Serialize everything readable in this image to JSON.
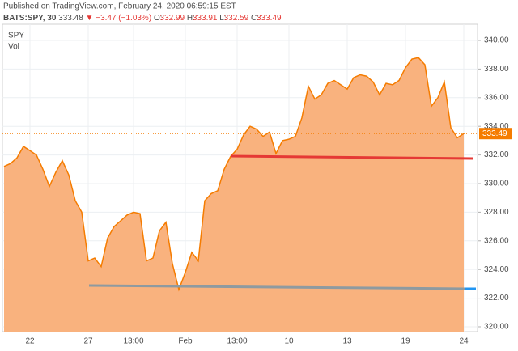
{
  "header": {
    "published": "Published on TradingView.com, February 24, 2020 06:59:15 EST",
    "symbol": "BATS:SPY, 30",
    "last": "333.48",
    "change": "▼ −3.47 (−1.03%)",
    "o_label": "O:",
    "o": "332.99",
    "h_label": "H:",
    "h": "333.91",
    "l_label": "L:",
    "l": "332.59",
    "c_label": "C:",
    "c": "333.49"
  },
  "chart_data": {
    "type": "area",
    "legend": [
      "SPY",
      "Vol"
    ],
    "categories": [
      null,
      null,
      null,
      null,
      "22",
      null,
      null,
      null,
      null,
      null,
      null,
      null,
      null,
      "27",
      null,
      null,
      null,
      null,
      null,
      null,
      "13:00",
      null,
      null,
      null,
      null,
      null,
      null,
      null,
      "Feb",
      null,
      null,
      null,
      null,
      null,
      null,
      null,
      "13:00",
      null,
      null,
      null,
      null,
      null,
      null,
      null,
      "10",
      null,
      null,
      null,
      null,
      null,
      null,
      null,
      null,
      "13",
      null,
      null,
      null,
      null,
      null,
      null,
      null,
      null,
      "19",
      null,
      null,
      null,
      null,
      null,
      null,
      null,
      null,
      "24"
    ],
    "values": [
      331.2,
      331.4,
      331.8,
      332.6,
      332.3,
      332.0,
      331.0,
      329.8,
      330.8,
      331.6,
      330.6,
      328.8,
      328.0,
      324.6,
      324.8,
      324.2,
      326.2,
      327.0,
      327.4,
      327.8,
      328.0,
      327.9,
      324.6,
      324.8,
      326.7,
      327.3,
      324.4,
      322.6,
      323.8,
      325.2,
      324.6,
      328.8,
      329.3,
      329.5,
      331.0,
      331.9,
      332.4,
      333.4,
      334.0,
      333.8,
      333.3,
      333.6,
      332.1,
      333.0,
      333.1,
      333.3,
      334.6,
      336.8,
      335.9,
      336.2,
      337.0,
      337.2,
      336.9,
      336.6,
      337.4,
      337.6,
      337.5,
      337.1,
      336.2,
      337.0,
      336.9,
      337.2,
      338.1,
      338.7,
      338.8,
      338.3,
      335.4,
      336.0,
      337.1,
      333.9,
      333.2,
      333.49
    ],
    "color": "#f57c00",
    "fill": "#f9b27e",
    "ylim": [
      319.66,
      341.13
    ],
    "yticks": [
      {
        "value": 320,
        "label": "320.00"
      },
      {
        "value": 322,
        "label": "322.00"
      },
      {
        "value": 324,
        "label": "324.00"
      },
      {
        "value": 326,
        "label": "326.00"
      },
      {
        "value": 328,
        "label": "328.00"
      },
      {
        "value": 330,
        "label": "330.00"
      },
      {
        "value": 332,
        "label": "332.00"
      },
      {
        "value": 334,
        "label": "334.00"
      },
      {
        "value": 336,
        "label": "336.00"
      },
      {
        "value": 338,
        "label": "338.00"
      },
      {
        "value": 340,
        "label": "340.00"
      }
    ],
    "grid": true
  }
}
